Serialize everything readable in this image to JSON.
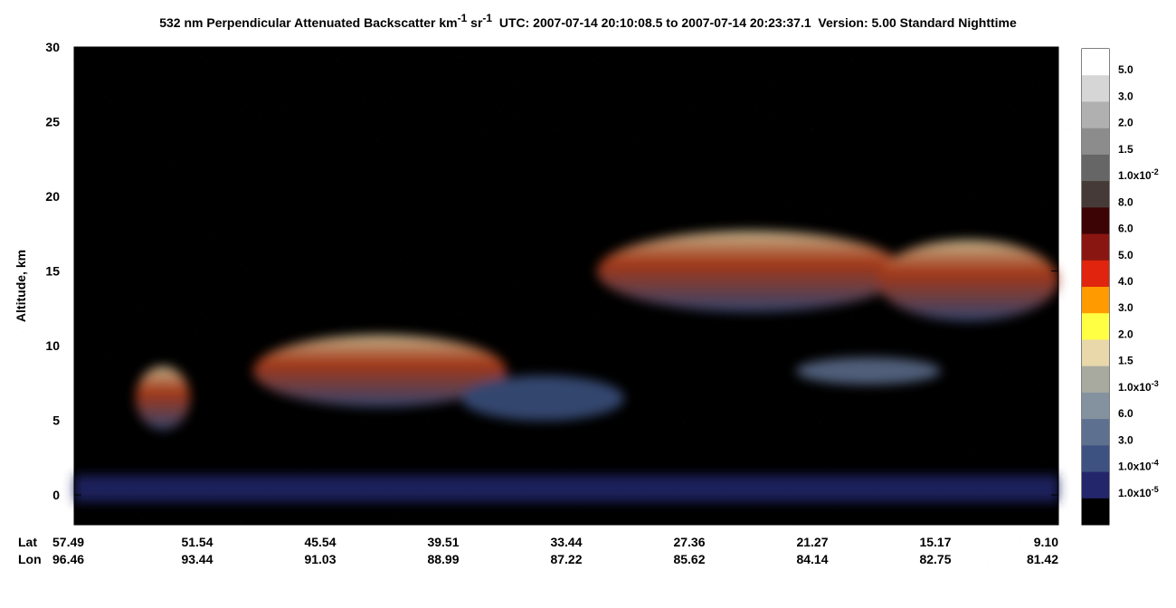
{
  "title": {
    "main": "532 nm Perpendicular Attenuated Backscatter km",
    "sup1": "-1",
    "mid": " sr",
    "sup2": "-1",
    "rest": "  UTC: 2007-07-14 20:10:08.5 to 2007-07-14 20:23:37.1  Version: 5.00 Standard Nighttime"
  },
  "y_axis": {
    "label": "Altitude, km",
    "ylim": [
      -2,
      30
    ],
    "ticks": [
      0,
      5,
      10,
      15,
      20,
      25,
      30
    ]
  },
  "x_axis": {
    "lat_label": "Lat",
    "lon_label": "Lon",
    "lat": [
      "57.49",
      "51.54",
      "45.54",
      "39.51",
      "33.44",
      "27.36",
      "21.27",
      "15.17",
      "9.10"
    ],
    "lon": [
      "96.46",
      "93.44",
      "91.03",
      "88.99",
      "87.22",
      "85.62",
      "84.14",
      "82.75",
      "81.42"
    ]
  },
  "colorbar": {
    "colors": [
      "#ffffff",
      "#d6d6d6",
      "#b0b0b0",
      "#8c8c8c",
      "#666666",
      "#463a38",
      "#3c0404",
      "#8a1612",
      "#e0240e",
      "#ff9a00",
      "#ffff44",
      "#e8d8aa",
      "#a8aaa0",
      "#8492a0",
      "#5e7090",
      "#3e5282",
      "#24266c",
      "#000000"
    ],
    "labels": [
      {
        "base": "5.0"
      },
      {
        "base": "3.0"
      },
      {
        "base": "2.0"
      },
      {
        "base": "1.5"
      },
      {
        "base": "1.0x10",
        "exp": "-2"
      },
      {
        "base": "8.0"
      },
      {
        "base": "6.0"
      },
      {
        "base": "5.0"
      },
      {
        "base": "4.0"
      },
      {
        "base": "3.0"
      },
      {
        "base": "2.0"
      },
      {
        "base": "1.5"
      },
      {
        "base": "1.0x10",
        "exp": "-3"
      },
      {
        "base": "6.0"
      },
      {
        "base": "3.0"
      },
      {
        "base": "1.0x10",
        "exp": "-4"
      },
      {
        "base": "1.0x10",
        "exp": "-5"
      }
    ]
  }
}
